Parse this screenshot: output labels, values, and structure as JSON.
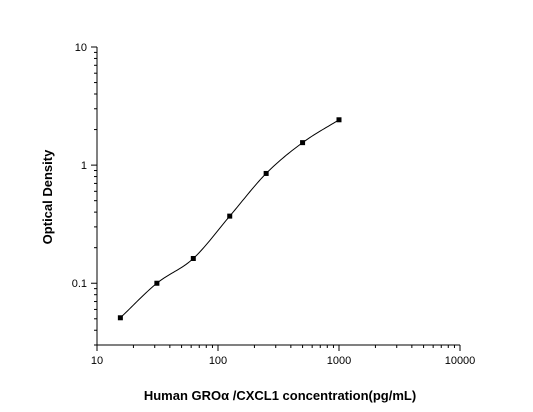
{
  "chart_data": {
    "type": "scatter",
    "xlabel": "Human GROα /CXCL1 concentration(pg/mL)",
    "ylabel": "Optical Density",
    "xscale": "log",
    "yscale": "log",
    "xlim": [
      10,
      10000
    ],
    "ylim": [
      0.03,
      10
    ],
    "x_ticks": [
      10,
      100,
      1000,
      10000
    ],
    "x_tick_labels": [
      "10",
      "100",
      "1000",
      "10000"
    ],
    "y_ticks": [
      0.1,
      1,
      10
    ],
    "y_tick_labels": [
      "0.1",
      "1",
      "10"
    ],
    "grid": false,
    "fit_curve": true,
    "series": [
      {
        "x": [
          15.6,
          31.25,
          62.5,
          125,
          250,
          500,
          1000
        ],
        "y": [
          0.051,
          0.1,
          0.162,
          0.37,
          0.85,
          1.55,
          2.42
        ]
      }
    ],
    "colors": {
      "marker": "#000000",
      "line": "#000000"
    }
  }
}
